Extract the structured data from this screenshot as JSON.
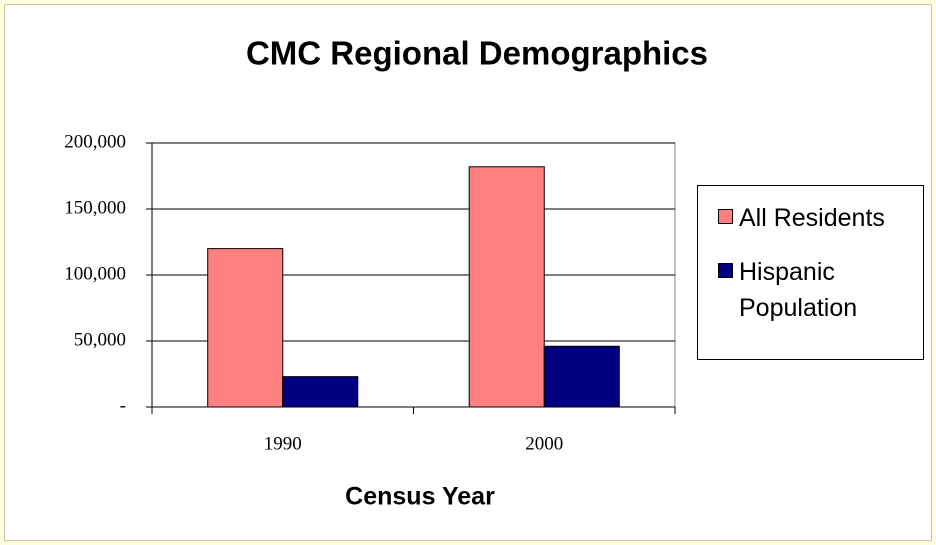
{
  "chart_data": {
    "type": "bar",
    "title": "CMC Regional Demographics",
    "x_label": "Census Year",
    "categories": [
      "1990",
      "2000"
    ],
    "series": [
      {
        "name": "All Residents",
        "color": "#ff8080",
        "values": [
          120000,
          182000
        ]
      },
      {
        "name": "Hispanic Population",
        "color": "#000080",
        "values": [
          23000,
          46000
        ]
      }
    ],
    "ylim": [
      0,
      200000
    ],
    "yticks": [
      {
        "value": 0,
        "label": "-"
      },
      {
        "value": 50000,
        "label": "50,000"
      },
      {
        "value": 100000,
        "label": "100,000"
      },
      {
        "value": 150000,
        "label": "150,000"
      },
      {
        "value": 200000,
        "label": "200,000"
      }
    ],
    "grid": true,
    "legend": "right"
  }
}
